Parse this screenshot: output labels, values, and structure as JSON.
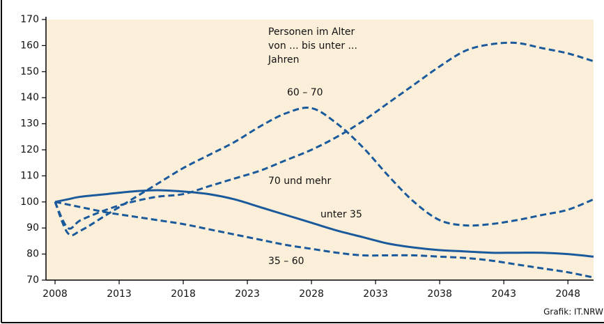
{
  "chart_data": {
    "type": "line",
    "annotation": [
      "Personen im Alter",
      "von ... bis unter ...",
      "Jahren"
    ],
    "source": "Grafik: IT.NRW",
    "x": [
      2008,
      2009,
      2010,
      2012,
      2014,
      2016,
      2018,
      2020,
      2022,
      2024,
      2026,
      2028,
      2030,
      2032,
      2034,
      2036,
      2038,
      2040,
      2042,
      2044,
      2046,
      2048,
      2050
    ],
    "xlim": [
      2008,
      2050
    ],
    "xticks": [
      2008,
      2013,
      2018,
      2023,
      2028,
      2033,
      2038,
      2043,
      2048
    ],
    "ylim": [
      70,
      170
    ],
    "yticks": [
      70,
      80,
      90,
      100,
      110,
      120,
      130,
      140,
      150,
      160,
      170
    ],
    "background": "#fbefd9",
    "series": [
      {
        "name": "60 – 70",
        "color": "#1a5a9c",
        "dashed": true,
        "values": [
          100,
          88,
          89,
          95,
          101,
          107,
          113,
          118,
          123,
          129,
          134,
          136,
          130,
          121,
          110,
          100,
          93,
          91,
          91.5,
          93,
          95,
          97,
          101
        ]
      },
      {
        "name": "70 und mehr",
        "color": "#1a5a9c",
        "dashed": true,
        "values": [
          100,
          90,
          93,
          97,
          100,
          102,
          103,
          106,
          109,
          112,
          116,
          120,
          125,
          131,
          138,
          145,
          152,
          158,
          160.5,
          161,
          159,
          157,
          154
        ]
      },
      {
        "name": "unter 35",
        "color": "#1a5a9c",
        "dashed": false,
        "values": [
          100,
          101,
          102,
          103,
          104,
          104.5,
          104,
          103,
          101,
          98,
          95,
          92,
          89,
          86.5,
          84,
          82.5,
          81.5,
          81,
          80.5,
          80.5,
          80.5,
          80,
          79
        ]
      },
      {
        "name": "35 – 60",
        "color": "#1a5a9c",
        "dashed": true,
        "values": [
          100,
          99,
          98,
          96,
          94.5,
          93,
          91.5,
          89.5,
          87.5,
          85.5,
          83.5,
          82,
          80.5,
          79.5,
          79.5,
          79.5,
          79,
          78.5,
          77.5,
          76,
          74.5,
          73,
          71
        ]
      }
    ]
  }
}
